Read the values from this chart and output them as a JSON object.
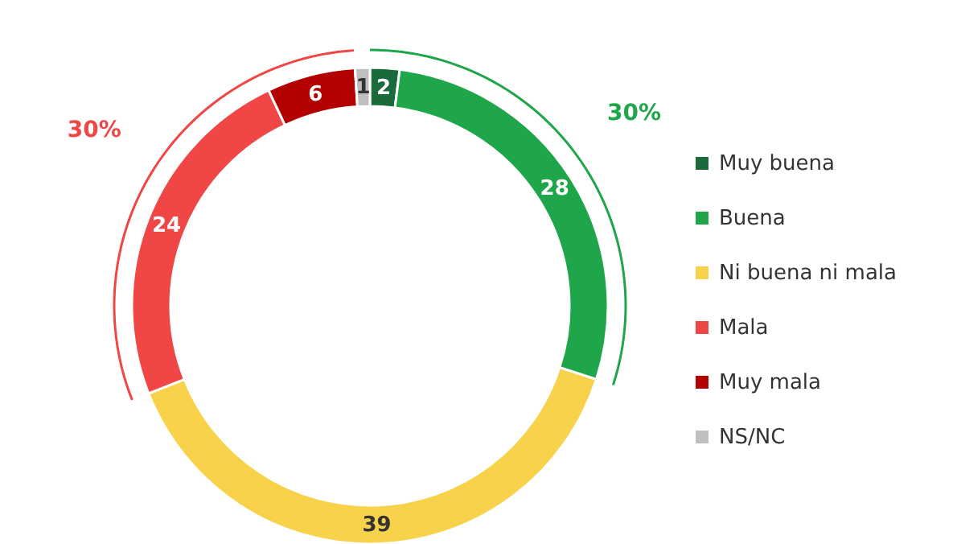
{
  "chart_data": {
    "type": "donut",
    "categories": [
      "Muy buena",
      "Buena",
      "Ni buena ni mala",
      "Mala",
      "Muy mala",
      "NS/NC"
    ],
    "values": [
      2,
      28,
      39,
      24,
      6,
      1
    ],
    "colors": [
      "#1a6b3c",
      "#1fa64a",
      "#f7d24a",
      "#f04646",
      "#b30000",
      "#bfbfbf"
    ],
    "data_labels": true,
    "legend": "right",
    "annotations": [
      "30%",
      "30%"
    ]
  }
}
